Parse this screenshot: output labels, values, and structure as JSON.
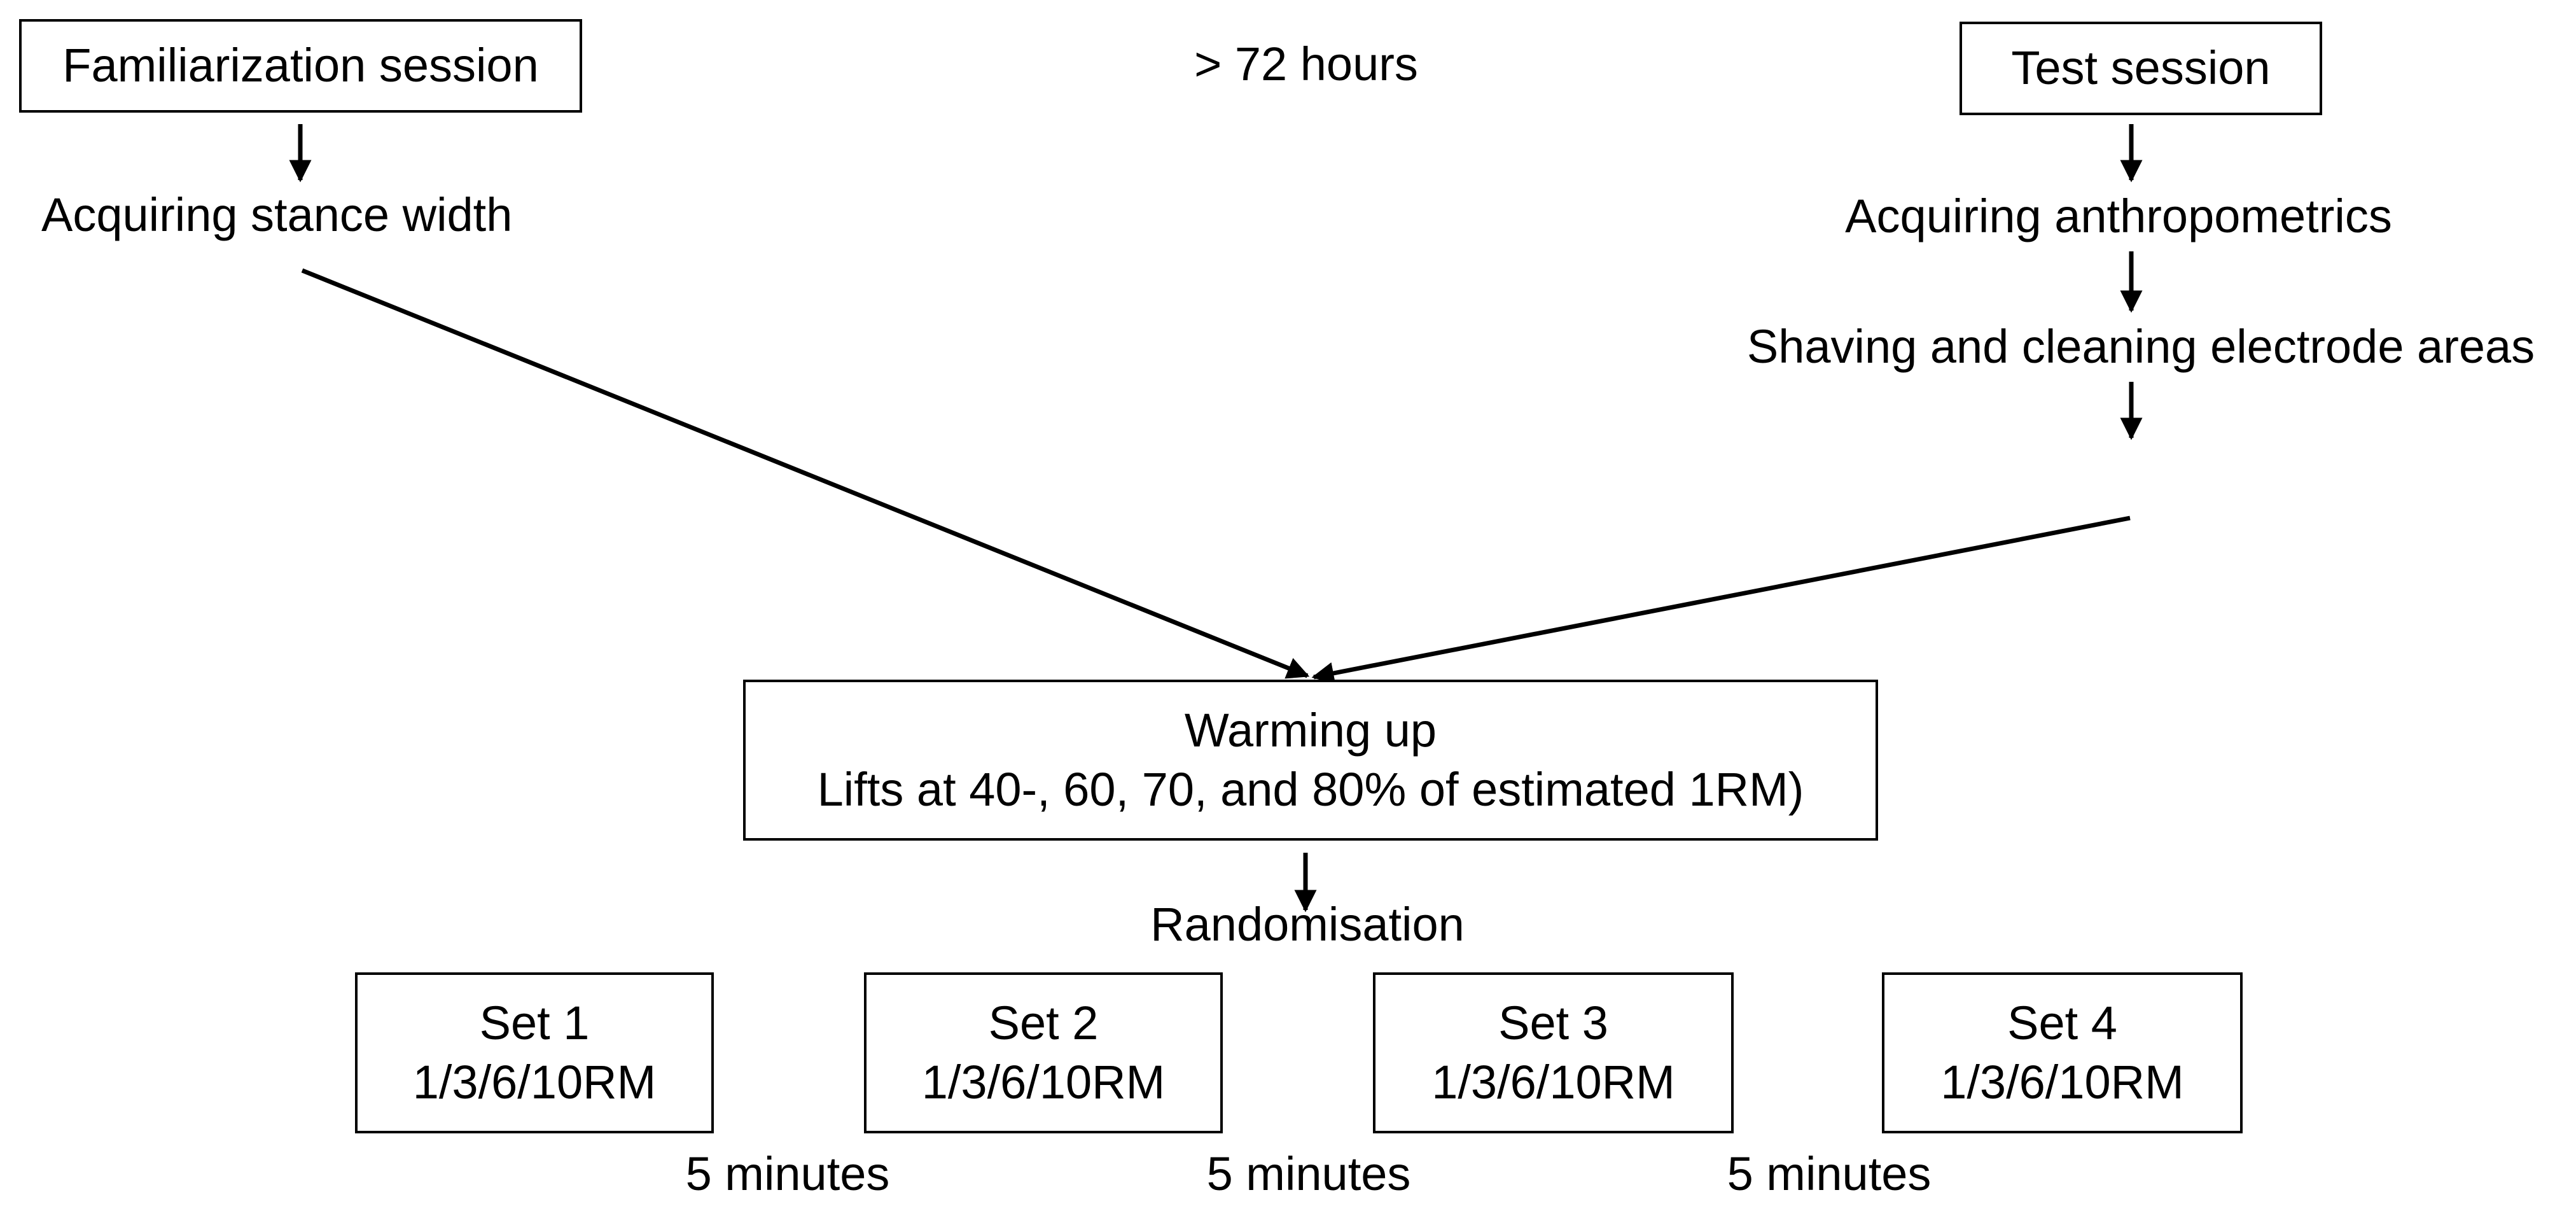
{
  "familiarization": {
    "label": "Familiarization session",
    "step": "Acquiring stance width"
  },
  "interval_label": "> 72 hours",
  "test": {
    "label": "Test session",
    "steps": [
      "Acquiring anthropometrics",
      "Shaving and cleaning electrode areas"
    ]
  },
  "warmup": {
    "title": "Warming up",
    "detail": "Lifts at 40-, 60, 70, and 80% of estimated 1RM)"
  },
  "randomisation_label": "Randomisation",
  "sets": [
    {
      "name": "Set 1",
      "detail": "1/3/6/10RM"
    },
    {
      "name": "Set 2",
      "detail": "1/3/6/10RM"
    },
    {
      "name": "Set 3",
      "detail": "1/3/6/10RM"
    },
    {
      "name": "Set 4",
      "detail": "1/3/6/10RM"
    }
  ],
  "rest_labels": [
    "5 minutes",
    "5 minutes",
    "5 minutes"
  ]
}
